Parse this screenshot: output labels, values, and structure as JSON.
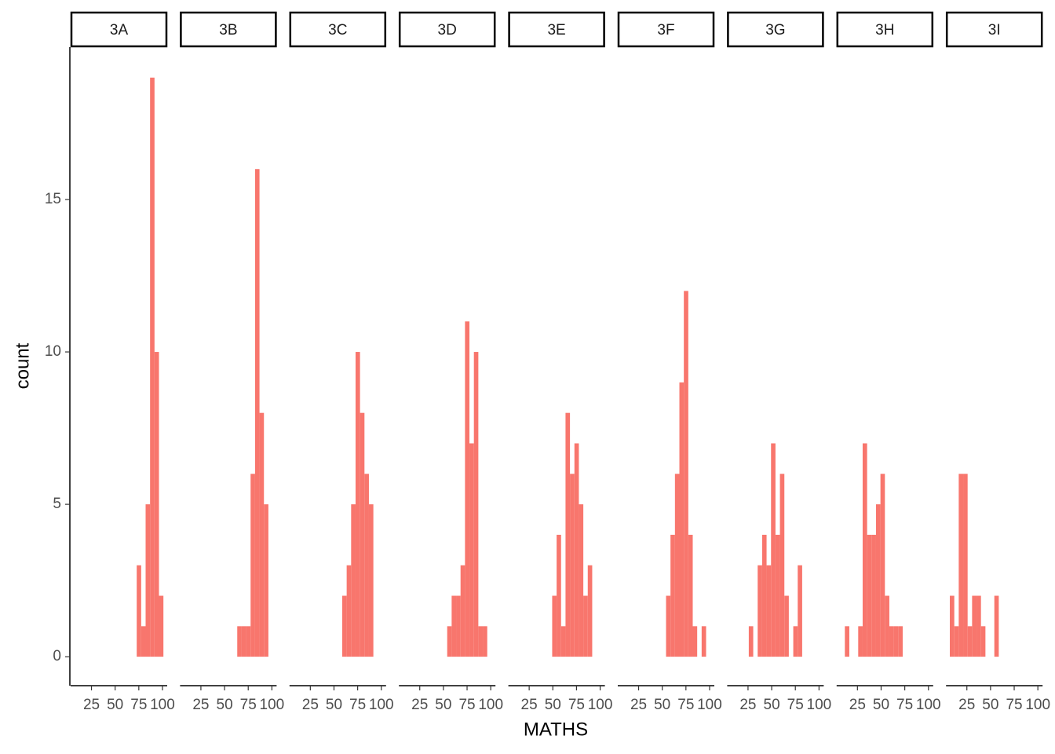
{
  "xlabel": "MATHS",
  "ylabel": "count",
  "chart_data": [
    {
      "type": "histogram",
      "title": "3A",
      "color": "#f8766d",
      "bins": [
        7,
        11.7,
        16.4,
        21.1,
        25.8,
        30.5,
        35.2,
        39.9,
        44.6,
        49.3,
        54,
        58.7,
        63.4,
        68.1,
        72.8,
        77.5,
        82.2,
        86.9,
        91.6,
        96.3,
        101
      ],
      "values": [
        0,
        0,
        0,
        0,
        0,
        0,
        0,
        0,
        0,
        0,
        0,
        0,
        0,
        0,
        3,
        1,
        5,
        19,
        10,
        2
      ],
      "xlim": [
        3,
        105
      ],
      "xticks": [
        25,
        50,
        75,
        100
      ],
      "ylim": [
        -0.95,
        20
      ],
      "yticks": [
        0,
        5,
        10,
        15
      ]
    },
    {
      "type": "histogram",
      "title": "3B",
      "color": "#f8766d",
      "bins": [
        7,
        11.7,
        16.4,
        21.1,
        25.8,
        30.5,
        35.2,
        39.9,
        44.6,
        49.3,
        54,
        58.7,
        63.4,
        68.1,
        72.8,
        77.5,
        82.2,
        86.9,
        91.6,
        96.3,
        101
      ],
      "values": [
        0,
        0,
        0,
        0,
        0,
        0,
        0,
        0,
        0,
        0,
        0,
        0,
        1,
        1,
        1,
        6,
        16,
        8,
        5,
        0
      ],
      "xlim": [
        3,
        105
      ],
      "xticks": [
        25,
        50,
        75,
        100
      ],
      "ylim": [
        -0.95,
        20
      ]
    },
    {
      "type": "histogram",
      "title": "3C",
      "color": "#f8766d",
      "bins": [
        7,
        11.7,
        16.4,
        21.1,
        25.8,
        30.5,
        35.2,
        39.9,
        44.6,
        49.3,
        54,
        58.7,
        63.4,
        68.1,
        72.8,
        77.5,
        82.2,
        86.9,
        91.6,
        96.3,
        101
      ],
      "values": [
        0,
        0,
        0,
        0,
        0,
        0,
        0,
        0,
        0,
        0,
        0,
        2,
        3,
        5,
        10,
        8,
        6,
        5,
        0,
        0
      ],
      "xlim": [
        3,
        105
      ],
      "xticks": [
        25,
        50,
        75,
        100
      ],
      "ylim": [
        -0.95,
        20
      ]
    },
    {
      "type": "histogram",
      "title": "3D",
      "color": "#f8766d",
      "bins": [
        7,
        11.7,
        16.4,
        21.1,
        25.8,
        30.5,
        35.2,
        39.9,
        44.6,
        49.3,
        54,
        58.7,
        63.4,
        68.1,
        72.8,
        77.5,
        82.2,
        86.9,
        91.6,
        96.3,
        101
      ],
      "values": [
        0,
        0,
        0,
        0,
        0,
        0,
        0,
        0,
        0,
        0,
        1,
        2,
        2,
        3,
        11,
        7,
        10,
        1,
        1,
        0
      ],
      "xlim": [
        3,
        105
      ],
      "xticks": [
        25,
        50,
        75,
        100
      ],
      "ylim": [
        -0.95,
        20
      ]
    },
    {
      "type": "histogram",
      "title": "3E",
      "color": "#f8766d",
      "bins": [
        7,
        11.7,
        16.4,
        21.1,
        25.8,
        30.5,
        35.2,
        39.9,
        44.6,
        49.3,
        54,
        58.7,
        63.4,
        68.1,
        72.8,
        77.5,
        82.2,
        86.9,
        91.6,
        96.3,
        101
      ],
      "values": [
        0,
        0,
        0,
        0,
        0,
        0,
        0,
        0,
        0,
        2,
        4,
        1,
        8,
        6,
        7,
        5,
        2,
        3,
        0,
        0
      ],
      "xlim": [
        3,
        105
      ],
      "xticks": [
        25,
        50,
        75,
        100
      ],
      "ylim": [
        -0.95,
        20
      ]
    },
    {
      "type": "histogram",
      "title": "3F",
      "color": "#f8766d",
      "bins": [
        7,
        11.7,
        16.4,
        21.1,
        25.8,
        30.5,
        35.2,
        39.9,
        44.6,
        49.3,
        54,
        58.7,
        63.4,
        68.1,
        72.8,
        77.5,
        82.2,
        86.9,
        91.6,
        96.3,
        101
      ],
      "values": [
        0,
        0,
        0,
        0,
        0,
        0,
        0,
        0,
        0,
        0,
        2,
        4,
        6,
        9,
        12,
        4,
        1,
        0,
        1,
        0
      ],
      "xlim": [
        3,
        105
      ],
      "xticks": [
        25,
        50,
        75,
        100
      ],
      "ylim": [
        -0.95,
        20
      ]
    },
    {
      "type": "histogram",
      "title": "3G",
      "color": "#f8766d",
      "bins": [
        7,
        11.7,
        16.4,
        21.1,
        25.8,
        30.5,
        35.2,
        39.9,
        44.6,
        49.3,
        54,
        58.7,
        63.4,
        68.1,
        72.8,
        77.5,
        82.2,
        86.9,
        91.6,
        96.3,
        101
      ],
      "values": [
        0,
        0,
        0,
        0,
        1,
        0,
        3,
        4,
        3,
        7,
        4,
        6,
        2,
        0,
        1,
        3,
        0,
        0,
        0,
        0
      ],
      "xlim": [
        3,
        105
      ],
      "xticks": [
        25,
        50,
        75,
        100
      ],
      "ylim": [
        -0.95,
        20
      ]
    },
    {
      "type": "histogram",
      "title": "3H",
      "color": "#f8766d",
      "bins": [
        7,
        11.7,
        16.4,
        21.1,
        25.8,
        30.5,
        35.2,
        39.9,
        44.6,
        49.3,
        54,
        58.7,
        63.4,
        68.1,
        72.8,
        77.5,
        82.2,
        86.9,
        91.6,
        96.3,
        101
      ],
      "values": [
        0,
        1,
        0,
        0,
        1,
        7,
        4,
        4,
        5,
        6,
        2,
        1,
        1,
        1,
        0,
        0,
        0,
        0,
        0,
        0
      ],
      "xlim": [
        3,
        105
      ],
      "xticks": [
        25,
        50,
        75,
        100
      ],
      "ylim": [
        -0.95,
        20
      ]
    },
    {
      "type": "histogram",
      "title": "3I",
      "color": "#f8766d",
      "bins": [
        7,
        11.7,
        16.4,
        21.1,
        25.8,
        30.5,
        35.2,
        39.9,
        44.6,
        49.3,
        54,
        58.7,
        63.4,
        68.1,
        72.8,
        77.5,
        82.2,
        86.9,
        91.6,
        96.3,
        101
      ],
      "values": [
        2,
        1,
        6,
        6,
        1,
        2,
        2,
        1,
        0,
        0,
        2,
        0,
        0,
        0,
        0,
        0,
        0,
        0,
        0,
        0
      ],
      "xlim": [
        3,
        105
      ],
      "xticks": [
        25,
        50,
        75,
        100
      ],
      "ylim": [
        -0.95,
        20
      ]
    }
  ]
}
